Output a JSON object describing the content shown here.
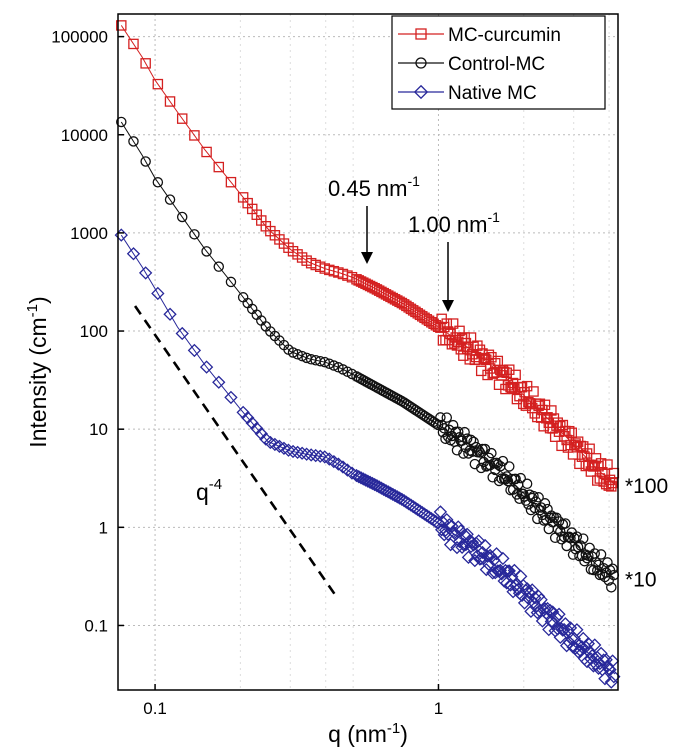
{
  "chart_data": {
    "type": "scatter",
    "xlabel": "q (nm",
    "xlabel_sup": "-1",
    "xlabel_end": ")",
    "ylabel": "Intensity (cm",
    "ylabel_sup": "-1",
    "ylabel_end": ")",
    "xscale": "log",
    "yscale": "log",
    "xlim": [
      0.074,
      4.3
    ],
    "ylim": [
      0.022,
      170000
    ],
    "grid": true,
    "legend_position": "top-right",
    "x_ticks": [
      {
        "value": 0.1,
        "label": "0.1"
      },
      {
        "value": 1,
        "label": "1"
      }
    ],
    "y_ticks": [
      {
        "value": 0.1,
        "label": "0.1"
      },
      {
        "value": 1,
        "label": "1"
      },
      {
        "value": 10,
        "label": "10"
      },
      {
        "value": 100,
        "label": "100"
      },
      {
        "value": 1000,
        "label": "1000"
      },
      {
        "value": 10000,
        "label": "10000"
      },
      {
        "value": 100000,
        "label": "100000"
      }
    ],
    "series": [
      {
        "name": "MC-curcumin",
        "color": "#d42020",
        "marker": "square",
        "anchors": [
          [
            0.076,
            130000
          ],
          [
            0.09,
            62000
          ],
          [
            0.1,
            36000
          ],
          [
            0.12,
            17000
          ],
          [
            0.15,
            7000
          ],
          [
            0.2,
            2500
          ],
          [
            0.25,
            1100
          ],
          [
            0.3,
            680
          ],
          [
            0.35,
            500
          ],
          [
            0.4,
            430
          ],
          [
            0.45,
            390
          ],
          [
            0.5,
            350
          ],
          [
            0.6,
            270
          ],
          [
            0.75,
            190
          ],
          [
            1.0,
            110
          ],
          [
            1.3,
            65
          ],
          [
            1.7,
            35
          ],
          [
            2.2,
            17
          ],
          [
            3.0,
            7
          ],
          [
            3.6,
            4
          ],
          [
            4.2,
            2.7
          ]
        ]
      },
      {
        "name": "Control-MC",
        "color": "#111111",
        "marker": "circle",
        "anchors": [
          [
            0.076,
            13500
          ],
          [
            0.09,
            6200
          ],
          [
            0.1,
            3600
          ],
          [
            0.12,
            1700
          ],
          [
            0.15,
            680
          ],
          [
            0.2,
            240
          ],
          [
            0.25,
            105
          ],
          [
            0.3,
            62
          ],
          [
            0.35,
            52
          ],
          [
            0.4,
            48
          ],
          [
            0.45,
            42
          ],
          [
            0.5,
            36
          ],
          [
            0.6,
            27
          ],
          [
            0.75,
            19
          ],
          [
            1.0,
            11
          ],
          [
            1.3,
            6.5
          ],
          [
            1.7,
            3.5
          ],
          [
            2.2,
            1.7
          ],
          [
            3.0,
            0.7
          ],
          [
            3.6,
            0.42
          ],
          [
            4.2,
            0.3
          ]
        ]
      },
      {
        "name": "Native MC",
        "color": "#28289a",
        "marker": "diamond",
        "anchors": [
          [
            0.076,
            950
          ],
          [
            0.09,
            450
          ],
          [
            0.1,
            270
          ],
          [
            0.12,
            110
          ],
          [
            0.15,
            45
          ],
          [
            0.2,
            16
          ],
          [
            0.25,
            7.5
          ],
          [
            0.3,
            6
          ],
          [
            0.35,
            5.5
          ],
          [
            0.4,
            5.2
          ],
          [
            0.45,
            4.3
          ],
          [
            0.5,
            3.5
          ],
          [
            0.6,
            2.7
          ],
          [
            0.75,
            1.9
          ],
          [
            1.0,
            1.1
          ],
          [
            1.3,
            0.65
          ],
          [
            1.7,
            0.35
          ],
          [
            2.2,
            0.17
          ],
          [
            3.0,
            0.07
          ],
          [
            3.6,
            0.045
          ],
          [
            4.2,
            0.032
          ]
        ]
      }
    ],
    "reference_line": {
      "label": "q",
      "label_sup": "-4",
      "points": [
        [
          0.085,
          180
        ],
        [
          0.44,
          0.19
        ]
      ]
    },
    "annotations": [
      {
        "text": "0.45 nm",
        "sup": "-1",
        "x": 0.45,
        "y": 400
      },
      {
        "text": "1.00 nm",
        "sup": "-1",
        "x": 1.0,
        "y": 115
      }
    ],
    "side_labels": [
      {
        "text": "*100",
        "y": 2.7
      },
      {
        "text": "*10",
        "y": 0.3
      }
    ]
  }
}
